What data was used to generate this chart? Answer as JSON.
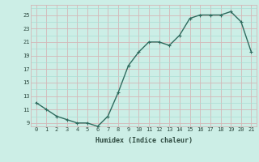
{
  "x": [
    0,
    1,
    2,
    3,
    4,
    5,
    6,
    7,
    8,
    9,
    10,
    11,
    12,
    13,
    14,
    15,
    16,
    17,
    18,
    19,
    20,
    21
  ],
  "y": [
    12,
    11,
    10,
    9.5,
    9,
    9,
    8.5,
    10,
    13.5,
    17.5,
    19.5,
    21,
    21,
    20.5,
    22,
    24.5,
    25,
    25,
    25,
    25.5,
    24,
    19.5
  ],
  "line_color": "#2e6b5e",
  "marker": "+",
  "marker_size": 3,
  "bg_color": "#cceee6",
  "grid_color_minor": "#aaddd4",
  "grid_color_major": "#d4b8b8",
  "xlabel": "Humidex (Indice chaleur)",
  "xlim": [
    -0.5,
    21.5
  ],
  "ylim": [
    8.5,
    26.5
  ],
  "yticks": [
    9,
    11,
    13,
    15,
    17,
    19,
    21,
    23,
    25
  ],
  "xticks": [
    0,
    1,
    2,
    3,
    4,
    5,
    6,
    7,
    8,
    9,
    10,
    11,
    12,
    13,
    14,
    15,
    16,
    17,
    18,
    19,
    20,
    21
  ],
  "font_color": "#2e4a40",
  "linewidth": 1.0
}
